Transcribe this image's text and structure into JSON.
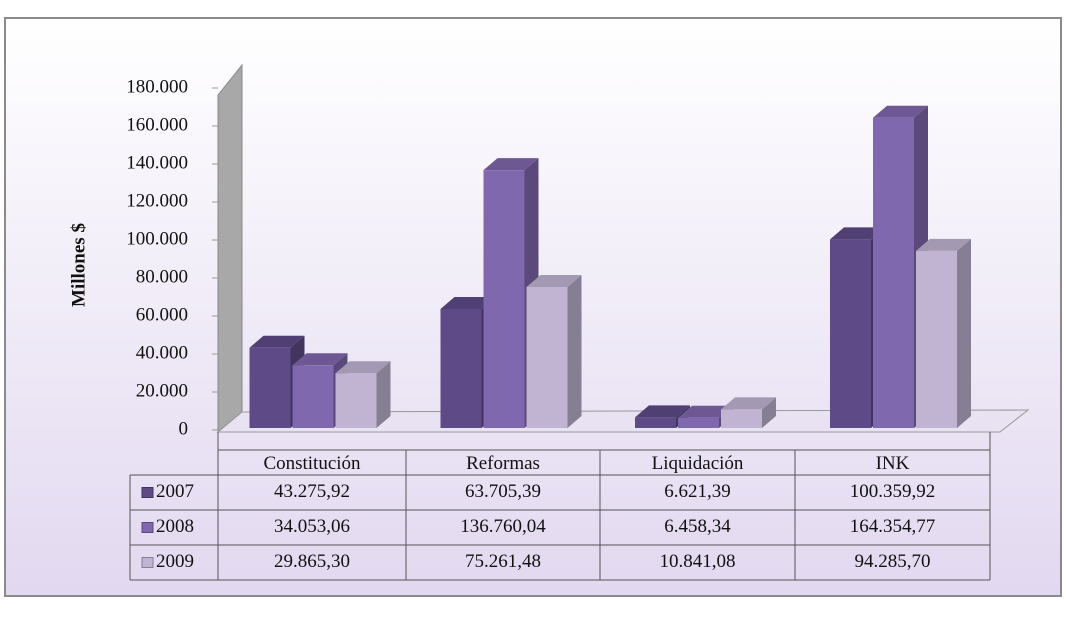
{
  "chart_data": {
    "type": "bar",
    "ylabel": "Millones $",
    "categories": [
      "Constitución",
      "Reformas",
      "Liquidación",
      "INK"
    ],
    "series": [
      {
        "name": "2007",
        "color": "#5e4a86",
        "values": [
          43275.92,
          63705.39,
          6621.39,
          100359.92
        ],
        "value_labels": [
          "43.275,92",
          "63.705,39",
          "6.621,39",
          "100.359,92"
        ]
      },
      {
        "name": "2008",
        "color": "#8068ae",
        "values": [
          34053.06,
          136760.04,
          6458.34,
          164354.77
        ],
        "value_labels": [
          "34.053,06",
          "136.760,04",
          "6.458,34",
          "164.354,77"
        ]
      },
      {
        "name": "2009",
        "color": "#c0b4d2",
        "values": [
          29865.3,
          75261.48,
          10841.08,
          94285.7
        ],
        "value_labels": [
          "29.865,30",
          "75.261,48",
          "10.841,08",
          "94.285,70"
        ]
      }
    ],
    "ylim": [
      0,
      180000
    ],
    "yticks": [
      0,
      {
        "value": 20000,
        "label": "20.000"
      },
      {
        "value": 40000,
        "label": "40.000"
      },
      {
        "value": 60000,
        "label": "60.000"
      },
      {
        "value": 80000,
        "label": "80.000"
      },
      {
        "value": 100000,
        "label": "100.000"
      },
      {
        "value": 120000,
        "label": "120.000"
      },
      {
        "value": 140000,
        "label": "140.000"
      },
      {
        "value": 160000,
        "label": "160.000"
      },
      {
        "value": 180000,
        "label": "180.000"
      }
    ]
  }
}
